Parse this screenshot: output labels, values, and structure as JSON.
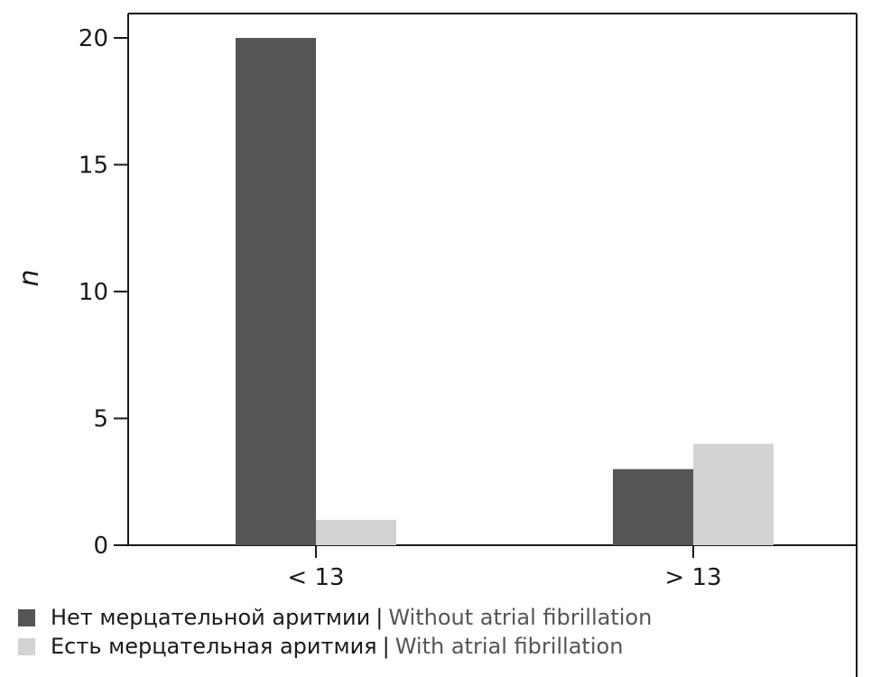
{
  "chart_data": {
    "type": "bar",
    "categories": [
      "< 13",
      "> 13"
    ],
    "series": [
      {
        "name": "Нет мерцательной аритмии | Without atrial fibrillation",
        "values": [
          20,
          3
        ],
        "color": "#555555"
      },
      {
        "name": "Есть мерцательная аритмия | With atrial fibrillation",
        "values": [
          1,
          4
        ],
        "color": "#d2d3d4"
      }
    ],
    "ylabel": "n",
    "xlabel": "",
    "ylim": [
      0,
      20
    ],
    "yticks": [
      0,
      5,
      10,
      15,
      20
    ],
    "grid": false,
    "legend_position": "bottom-left"
  },
  "legend": [
    {
      "ru": "Нет мерцательной аритмии",
      "sep": "|",
      "en": "Without atrial fibrillation"
    },
    {
      "ru": "Есть мерцательная аритмия",
      "sep": "|",
      "en": "With atrial fibrillation"
    }
  ]
}
